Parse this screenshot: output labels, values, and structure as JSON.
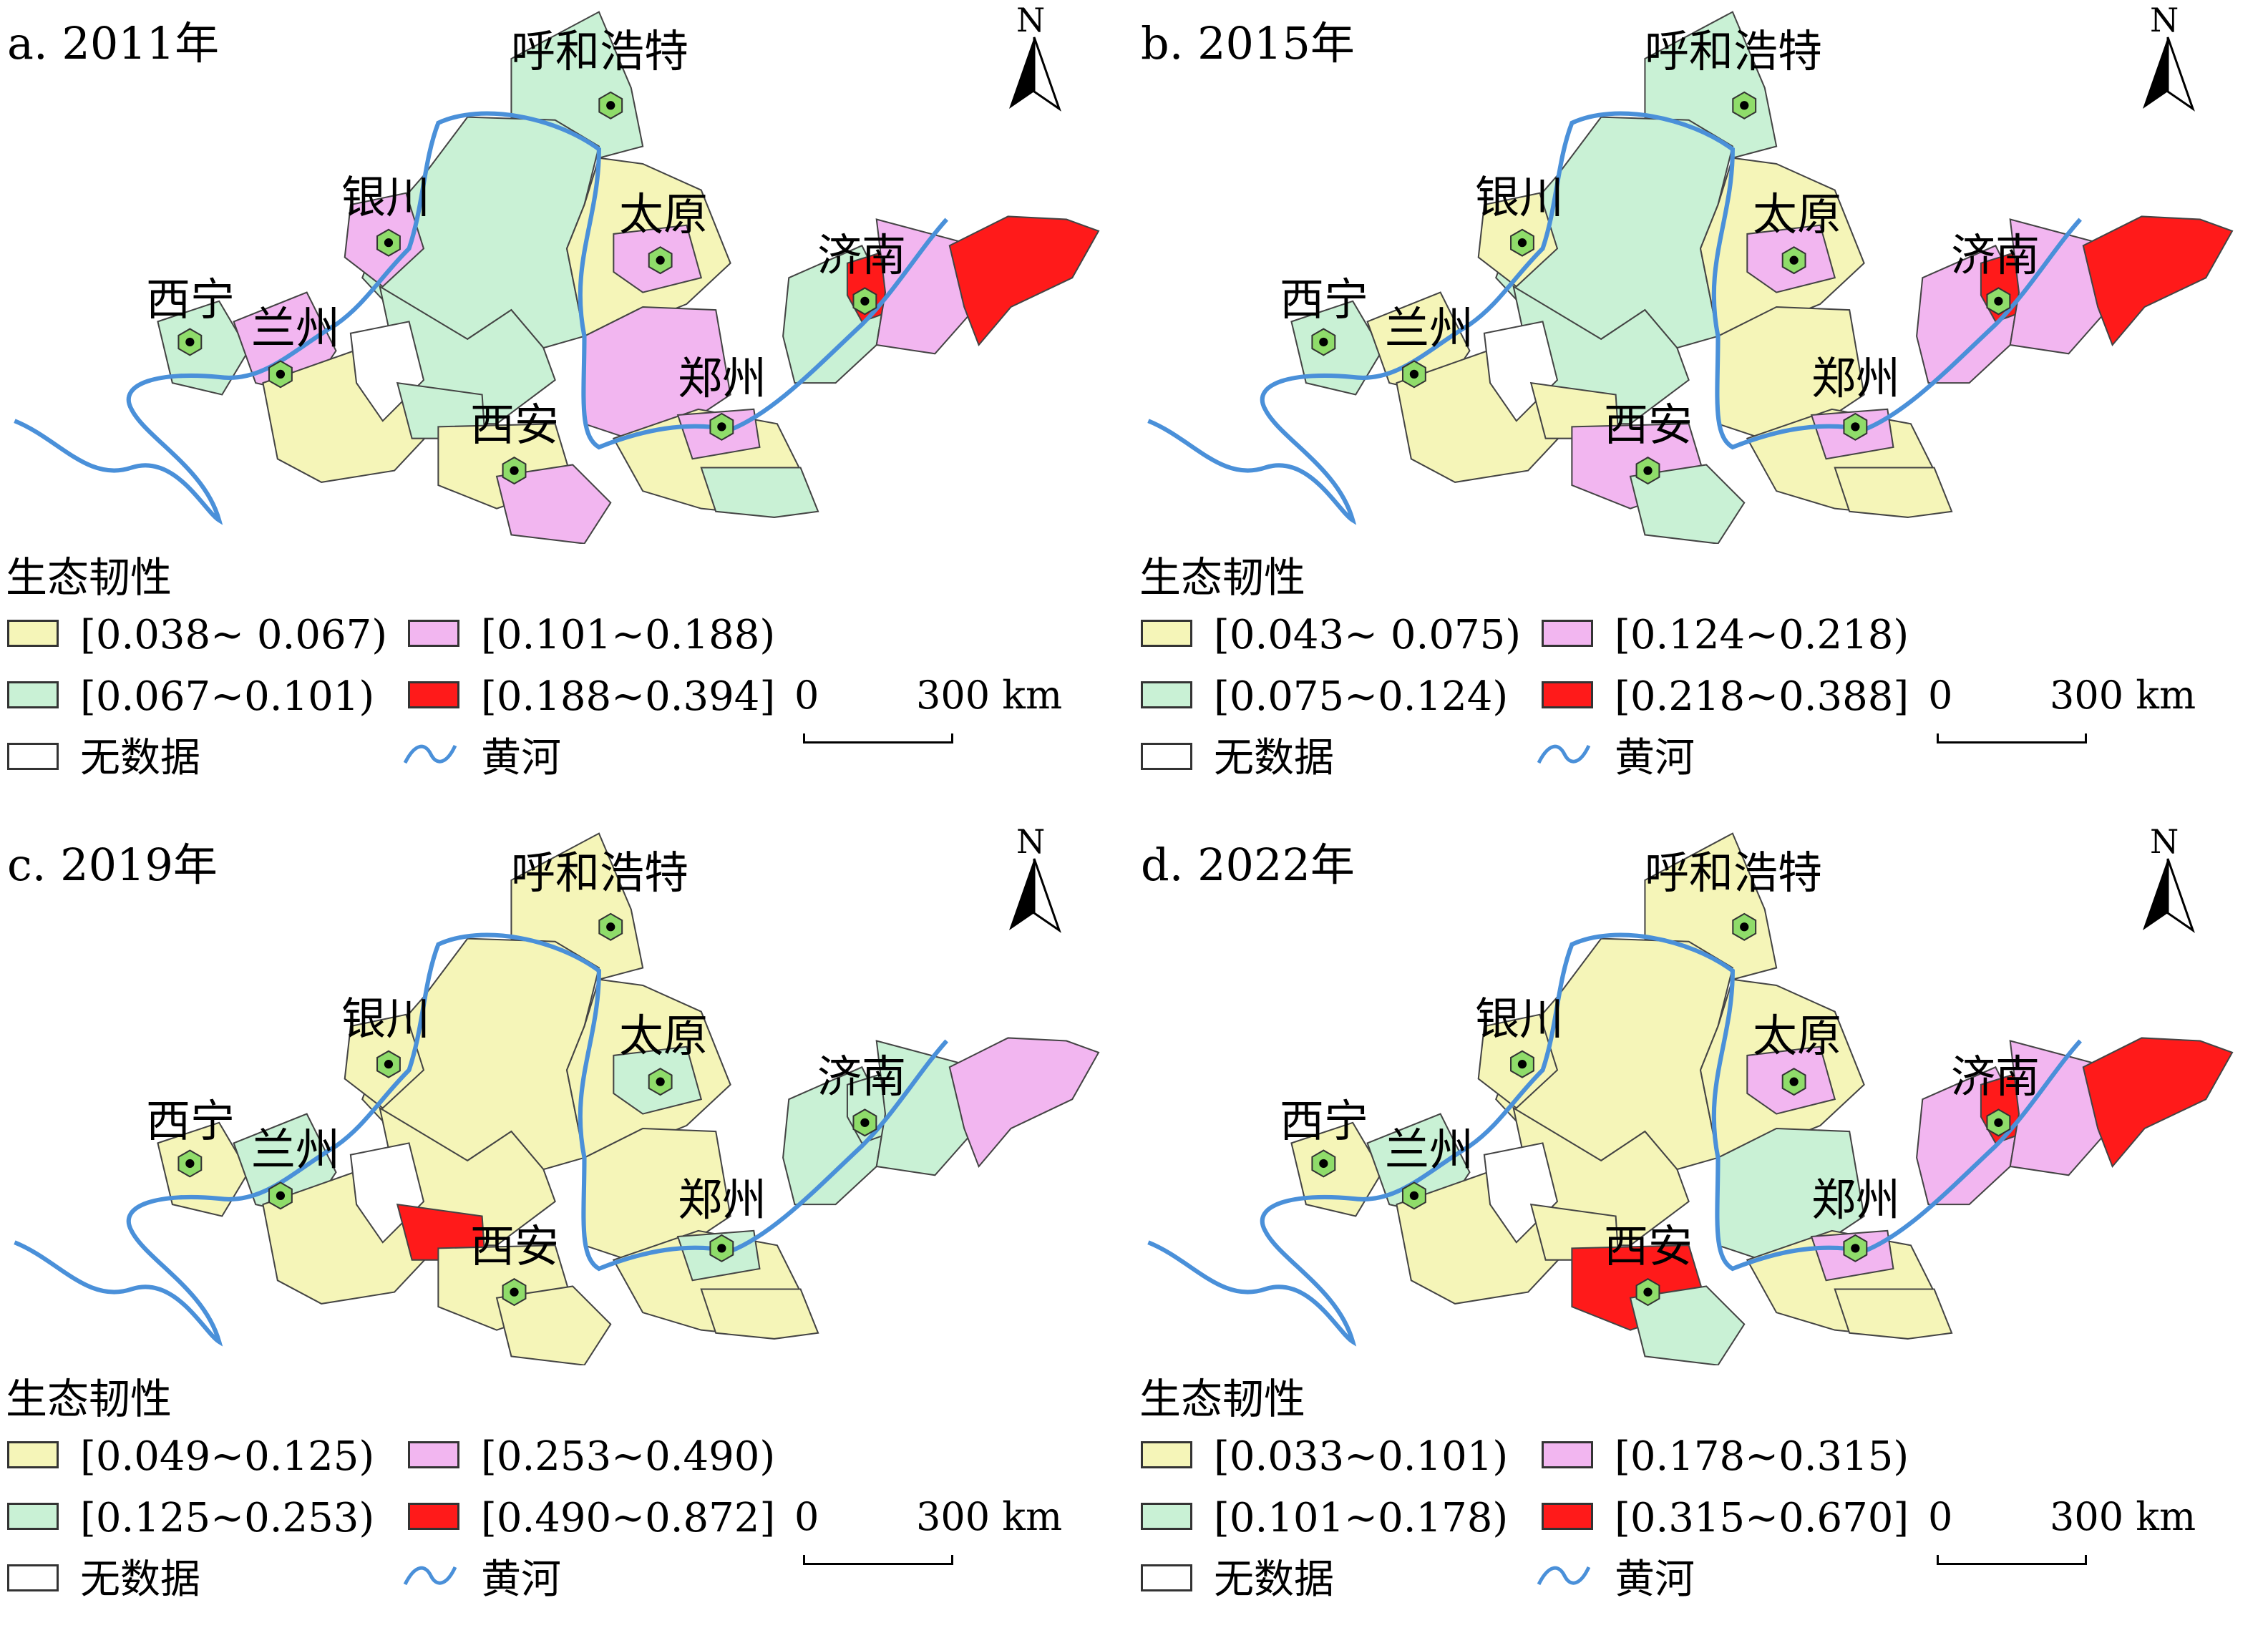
{
  "river_color": "#4a90d9",
  "class_colors": [
    "#f5f5b8",
    "#c9f1d5",
    "#f2b6f0",
    "#ff1a1a"
  ],
  "north_label": "N",
  "panels": [
    {
      "title": "a. 2011年",
      "legend_title": "生态韧性",
      "classes": [
        "[0.038~ 0.067)",
        "[0.067~0.101)",
        "[0.101~0.188)",
        "[0.188~0.394]"
      ],
      "no_data": "无数据",
      "river": "黄河",
      "scale_start": "0",
      "scale_end": "300 km",
      "region_classes": {
        "hohhot": 1,
        "inner": 1,
        "yinchuan": 2,
        "shaanxi_n": 1,
        "shanxi": 0,
        "taiyuan": 2,
        "shanxi_s": 2,
        "xining": 1,
        "lanzhou": 2,
        "gansu": 0,
        "nodata": -1,
        "xian_w": 1,
        "xian": 0,
        "xian_s": 2,
        "henan": 0,
        "zhengzhou": 2,
        "henan_s": 1,
        "shandong_w": 1,
        "jinan": 3,
        "shandong_c": 2,
        "shandong_e": 3
      }
    },
    {
      "title": "b. 2015年",
      "legend_title": "生态韧性",
      "classes": [
        "[0.043~ 0.075)",
        "[0.075~0.124)",
        "[0.124~0.218)",
        "[0.218~0.388]"
      ],
      "no_data": "无数据",
      "river": "黄河",
      "scale_start": "0",
      "scale_end": "300 km",
      "region_classes": {
        "hohhot": 1,
        "inner": 1,
        "yinchuan": 0,
        "shaanxi_n": 1,
        "shanxi": 0,
        "taiyuan": 2,
        "shanxi_s": 0,
        "xining": 1,
        "lanzhou": 0,
        "gansu": 0,
        "nodata": -1,
        "xian_w": 0,
        "xian": 2,
        "xian_s": 1,
        "henan": 0,
        "zhengzhou": 2,
        "henan_s": 0,
        "shandong_w": 2,
        "jinan": 3,
        "shandong_c": 2,
        "shandong_e": 3
      }
    },
    {
      "title": "c. 2019年",
      "legend_title": "生态韧性",
      "classes": [
        "[0.049~0.125)",
        "[0.125~0.253)",
        "[0.253~0.490)",
        "[0.490~0.872]"
      ],
      "no_data": "无数据",
      "river": "黄河",
      "scale_start": "0",
      "scale_end": "300 km",
      "region_classes": {
        "hohhot": 0,
        "inner": 0,
        "yinchuan": 0,
        "shaanxi_n": 0,
        "shanxi": 0,
        "taiyuan": 1,
        "shanxi_s": 0,
        "xining": 0,
        "lanzhou": 1,
        "gansu": 0,
        "nodata": -1,
        "xian_w": 3,
        "xian": 0,
        "xian_s": 0,
        "henan": 0,
        "zhengzhou": 1,
        "henan_s": 0,
        "shandong_w": 1,
        "jinan": 1,
        "shandong_c": 1,
        "shandong_e": 2
      }
    },
    {
      "title": "d. 2022年",
      "legend_title": "生态韧性",
      "classes": [
        "[0.033~0.101)",
        "[0.101~0.178)",
        "[0.178~0.315)",
        "[0.315~0.670]"
      ],
      "no_data": "无数据",
      "river": "黄河",
      "scale_start": "0",
      "scale_end": "300 km",
      "region_classes": {
        "hohhot": 0,
        "inner": 0,
        "yinchuan": 0,
        "shaanxi_n": 0,
        "shanxi": 0,
        "taiyuan": 2,
        "shanxi_s": 1,
        "xining": 0,
        "lanzhou": 1,
        "gansu": 0,
        "nodata": -1,
        "xian_w": 0,
        "xian": 3,
        "xian_s": 1,
        "henan": 0,
        "zhengzhou": 2,
        "henan_s": 0,
        "shandong_w": 2,
        "jinan": 3,
        "shandong_c": 2,
        "shandong_e": 3
      }
    }
  ],
  "cities": {
    "hohhot": "呼和浩特",
    "yinchuan": "银川",
    "taiyuan": "太原",
    "jinan": "济南",
    "xining": "西宁",
    "lanzhou": "兰州",
    "zhengzhou": "郑州",
    "xian": "西安"
  }
}
